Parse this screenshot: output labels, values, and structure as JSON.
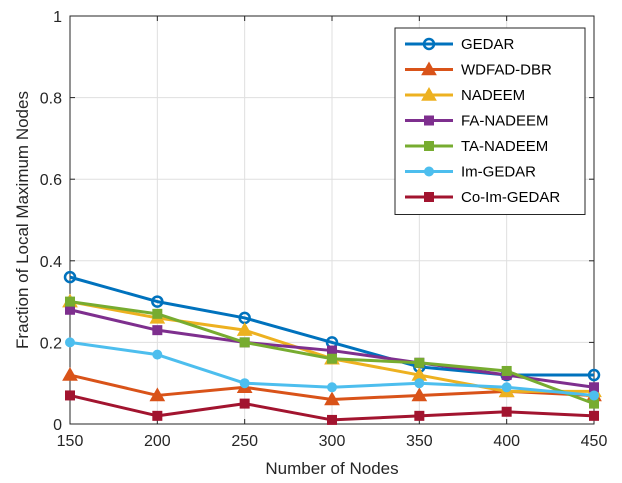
{
  "chart_data": {
    "type": "line",
    "xlabel": "Number of Nodes",
    "ylabel": "Fraction of Local Maximum Nodes",
    "x": [
      150,
      200,
      250,
      300,
      350,
      400,
      450
    ],
    "xlim": [
      150,
      450
    ],
    "ylim": [
      0,
      1
    ],
    "xticks": [
      150,
      200,
      250,
      300,
      350,
      400,
      450
    ],
    "yticks": [
      0,
      0.2,
      0.4,
      0.6,
      0.8,
      1
    ],
    "ytick_labels": [
      "0",
      "0.2",
      "0.4",
      "0.6",
      "0.8",
      "1"
    ],
    "grid": true,
    "legend_position": "top-right",
    "series": [
      {
        "name": "GEDAR",
        "color": "#0072BD",
        "marker": "circle-open",
        "values": [
          0.36,
          0.3,
          0.26,
          0.2,
          0.14,
          0.12,
          0.12
        ]
      },
      {
        "name": "WDFAD-DBR",
        "color": "#D95319",
        "marker": "triangle",
        "values": [
          0.12,
          0.07,
          0.09,
          0.06,
          0.07,
          0.08,
          0.07
        ]
      },
      {
        "name": "NADEEM",
        "color": "#EDB120",
        "marker": "triangle",
        "values": [
          0.3,
          0.26,
          0.23,
          0.16,
          0.12,
          0.08,
          0.08
        ]
      },
      {
        "name": "FA-NADEEM",
        "color": "#7E2F8E",
        "marker": "square",
        "values": [
          0.28,
          0.23,
          0.2,
          0.18,
          0.15,
          0.12,
          0.09
        ]
      },
      {
        "name": "TA-NADEEM",
        "color": "#77AC30",
        "marker": "square",
        "values": [
          0.3,
          0.27,
          0.2,
          0.16,
          0.15,
          0.13,
          0.05
        ]
      },
      {
        "name": "Im-GEDAR",
        "color": "#4DBEEE",
        "marker": "circle",
        "values": [
          0.2,
          0.17,
          0.1,
          0.09,
          0.1,
          0.09,
          0.07
        ]
      },
      {
        "name": "Co-Im-GEDAR",
        "color": "#A2142F",
        "marker": "square",
        "values": [
          0.07,
          0.02,
          0.05,
          0.01,
          0.02,
          0.03,
          0.02
        ]
      }
    ]
  }
}
